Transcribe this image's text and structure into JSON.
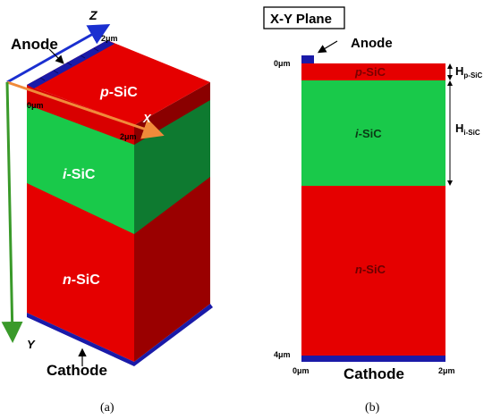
{
  "panel_a": {
    "axis_z": "Z",
    "axis_x": "X",
    "axis_y": "Y",
    "anode_label": "Anode",
    "cathode_label": "Cathode",
    "tick_z_2um": "2μm",
    "tick_x_0um": "0μm",
    "tick_x_2um": "2μm",
    "tick_y_4um": "4μm",
    "layer_p": {
      "italic": "p",
      "rest": "-SiC"
    },
    "layer_i": {
      "italic": "i",
      "rest": "-SiC"
    },
    "layer_n": {
      "italic": "n",
      "rest": "-SiC"
    },
    "caption": "(a)"
  },
  "panel_b": {
    "title": "X-Y Plane",
    "anode_label": "Anode",
    "cathode_label": "Cathode",
    "tick_y_0um": "0μm",
    "tick_y_4um": "4μm",
    "tick_x_0um": "0μm",
    "tick_x_2um": "2μm",
    "layer_p": {
      "italic": "p",
      "rest": "-SiC"
    },
    "layer_i": {
      "italic": "i",
      "rest": "-SiC"
    },
    "layer_n": {
      "italic": "n",
      "rest": "-SiC"
    },
    "dim_p": {
      "base": "H",
      "sub": "p-SiC"
    },
    "dim_i": {
      "base": "H",
      "sub": "i-SiC"
    },
    "caption": "(b)"
  },
  "colors": {
    "p_sic": "#e50000",
    "i_sic": "#19c94a",
    "n_sic": "#e50000",
    "electrode": "#1a1aa8",
    "axis_z": "#1a2fd0",
    "axis_x": "#f08a3a",
    "axis_y": "#3a9a2a"
  }
}
